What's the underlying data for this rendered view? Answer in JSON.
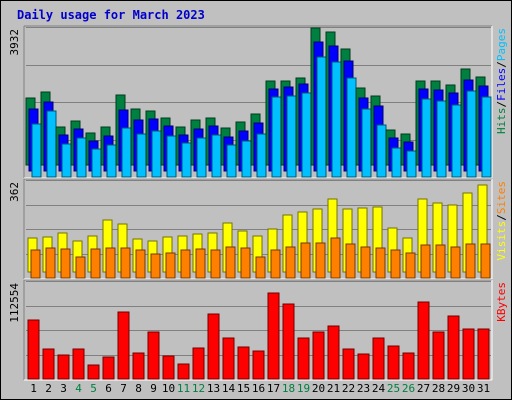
{
  "chart_data": {
    "type": "bar",
    "title": "Daily usage for March 2023",
    "days": [
      "1",
      "2",
      "3",
      "4",
      "5",
      "6",
      "7",
      "8",
      "9",
      "10",
      "11",
      "12",
      "13",
      "14",
      "15",
      "16",
      "17",
      "18",
      "19",
      "20",
      "21",
      "22",
      "23",
      "24",
      "25",
      "26",
      "27",
      "28",
      "29",
      "30",
      "31"
    ],
    "weekend_days": [
      "4",
      "5",
      "11",
      "12",
      "18",
      "19",
      "25",
      "26"
    ],
    "colors": {
      "hits": "#008040",
      "files": "#0000ff",
      "pages": "#00c0ff",
      "visits": "#ffff00",
      "sites": "#ff8000",
      "kbytes": "#ff0000",
      "weekday_label": "#000000",
      "weekend_label": "#008040",
      "title": "#0000cc"
    },
    "panels": [
      {
        "name": "hits-files-pages",
        "ymax_label": "3932",
        "ymax": 3932,
        "legend": [
          {
            "text": "Hits",
            "color": "#008040"
          },
          {
            "text": "/",
            "color": "#000000"
          },
          {
            "text": "Files",
            "color": "#0000ff"
          },
          {
            "text": "/",
            "color": "#000000"
          },
          {
            "text": "Pages",
            "color": "#00c0ff"
          }
        ],
        "series": [
          {
            "name": "Hits",
            "color": "#008040",
            "values": [
              1920,
              2100,
              1090,
              1250,
              930,
              1090,
              2010,
              1620,
              1560,
              1360,
              1090,
              1290,
              1360,
              1070,
              1220,
              1470,
              2410,
              2410,
              2510,
              3920,
              3810,
              3320,
              2210,
              1970,
              1000,
              880,
              2420,
              2400,
              2310,
              2750,
              2520
            ]
          },
          {
            "name": "Files",
            "color": "#0000ff",
            "values": [
              1770,
              1980,
              1040,
              1210,
              860,
              1010,
              1740,
              1450,
              1490,
              1280,
              1040,
              1210,
              1300,
              990,
              1140,
              1390,
              2360,
              2400,
              2490,
              3710,
              3580,
              3160,
              2100,
              1860,
              950,
              820,
              2360,
              2320,
              2230,
              2610,
              2440
            ]
          },
          {
            "name": "Pages",
            "color": "#00c0ff",
            "values": [
              1530,
              1880,
              960,
              1110,
              790,
              930,
              1410,
              1240,
              1330,
              1190,
              980,
              1110,
              1200,
              930,
              1040,
              1230,
              2300,
              2330,
              2410,
              3440,
              3290,
              2840,
              1940,
              1480,
              840,
              750,
              2250,
              2190,
              2080,
              2470,
              2300
            ]
          }
        ]
      },
      {
        "name": "visits-sites",
        "ymax_label": "362",
        "ymax": 362,
        "legend": [
          {
            "text": "Visits",
            "color": "#ffff00"
          },
          {
            "text": "/",
            "color": "#000000"
          },
          {
            "text": "Sites",
            "color": "#ff8000"
          }
        ],
        "series": [
          {
            "name": "Visits",
            "color": "#ffff00",
            "values": [
              135,
              140,
              155,
              125,
              145,
              205,
              190,
              130,
              125,
              140,
              145,
              150,
              155,
              195,
              165,
              145,
              170,
              225,
              240,
              250,
              290,
              250,
              255,
              260,
              175,
              135,
              290,
              275,
              265,
              315,
              345
            ]
          },
          {
            "name": "Sites",
            "color": "#ff8000",
            "values": [
              110,
              120,
              115,
              85,
              115,
              120,
              120,
              110,
              95,
              100,
              110,
              115,
              110,
              125,
              120,
              85,
              110,
              125,
              140,
              140,
              160,
              135,
              125,
              120,
              110,
              100,
              130,
              130,
              125,
              135,
              135
            ]
          }
        ]
      },
      {
        "name": "kbytes",
        "ymax_label": "112554",
        "ymax": 112554,
        "legend": [
          {
            "text": "KBytes",
            "color": "#ff0000"
          }
        ],
        "series": [
          {
            "name": "KBytes",
            "color": "#ff0000",
            "values": [
              68000,
              34500,
              28000,
              34500,
              16000,
              25000,
              78000,
              30500,
              54000,
              27000,
              17500,
              36500,
              76000,
              47500,
              37000,
              33000,
              100000,
              87000,
              47500,
              54000,
              62000,
              35000,
              29000,
              47500,
              38000,
              30500,
              89000,
              55000,
              73500,
              58000,
              58000
            ]
          }
        ]
      }
    ]
  }
}
